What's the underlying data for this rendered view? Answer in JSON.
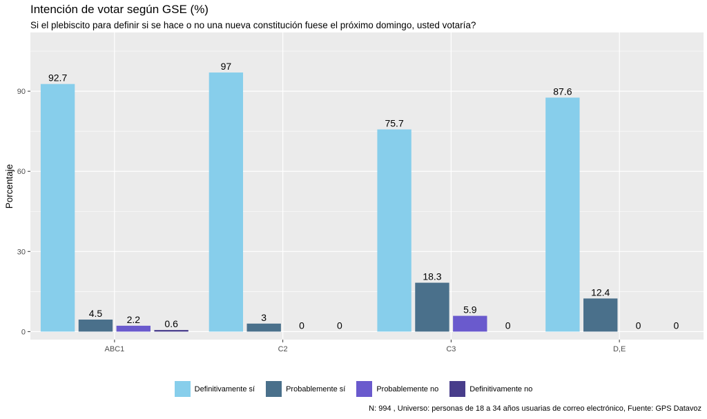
{
  "chart_data": {
    "type": "bar",
    "title": "Intención de votar según GSE (%)",
    "subtitle": "Si el plebiscito para definir si se hace o no una nueva constitución fuese el próximo domingo, usted votaría?",
    "xlabel": "",
    "ylabel": "Porcentaje",
    "caption": "N: 994 , Universo: personas de 18 a 34 años usuarias de correo electrónico, Fuente: GPS Datavoz",
    "categories": [
      "ABC1",
      "C2",
      "C3",
      "D,E"
    ],
    "ylim": [
      -3,
      112
    ],
    "yticks": [
      0,
      30,
      60,
      90
    ],
    "grid": true,
    "legend_position": "bottom",
    "series": [
      {
        "name": "Definitivamente sí",
        "color": "#87CEEB",
        "values": [
          92.7,
          97,
          75.7,
          87.6
        ],
        "labels": [
          "92.7",
          "97",
          "75.7",
          "87.6"
        ]
      },
      {
        "name": "Probablemente sí",
        "color": "#4A708B",
        "values": [
          4.5,
          3,
          18.3,
          12.4
        ],
        "labels": [
          "4.5",
          "3",
          "18.3",
          "12.4"
        ]
      },
      {
        "name": "Probablemente no",
        "color": "#6A5ACD",
        "values": [
          2.2,
          0,
          5.9,
          0
        ],
        "labels": [
          "2.2",
          "0",
          "5.9",
          "0"
        ]
      },
      {
        "name": "Definitivamente no",
        "color": "#483D8B",
        "values": [
          0.6,
          0,
          0,
          0
        ],
        "labels": [
          "0.6",
          "0",
          "0",
          "0"
        ]
      }
    ]
  }
}
